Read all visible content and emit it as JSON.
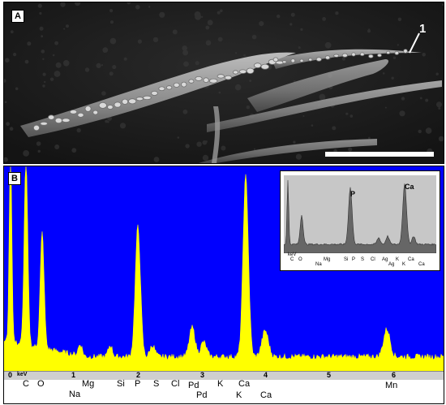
{
  "panel_a": {
    "label": "A",
    "pointer_label": "1"
  },
  "panel_b": {
    "label": "B",
    "colors": {
      "background": "#0000ff",
      "spectrum": "#ffff00"
    },
    "axis_unit": "keV",
    "axis_ticks": [
      "0",
      "1",
      "2",
      "3",
      "4",
      "5",
      "6"
    ],
    "element_labels_row1": [
      "C",
      "O",
      "Mg",
      "Si",
      "P",
      "S",
      "Cl",
      "Pd",
      "K",
      "Ca",
      "Mn"
    ],
    "element_labels_row2": [
      "Na",
      "Pd",
      "K",
      "Ca"
    ],
    "inset": {
      "peak_labels": [
        "P",
        "Ca"
      ],
      "axis_unit": "keV",
      "element_labels": [
        "C",
        "O",
        "Na",
        "Mg",
        "Si",
        "P",
        "S",
        "Cl",
        "Ag",
        "Ag",
        "K",
        "K",
        "Ca",
        "Ca"
      ]
    }
  }
}
